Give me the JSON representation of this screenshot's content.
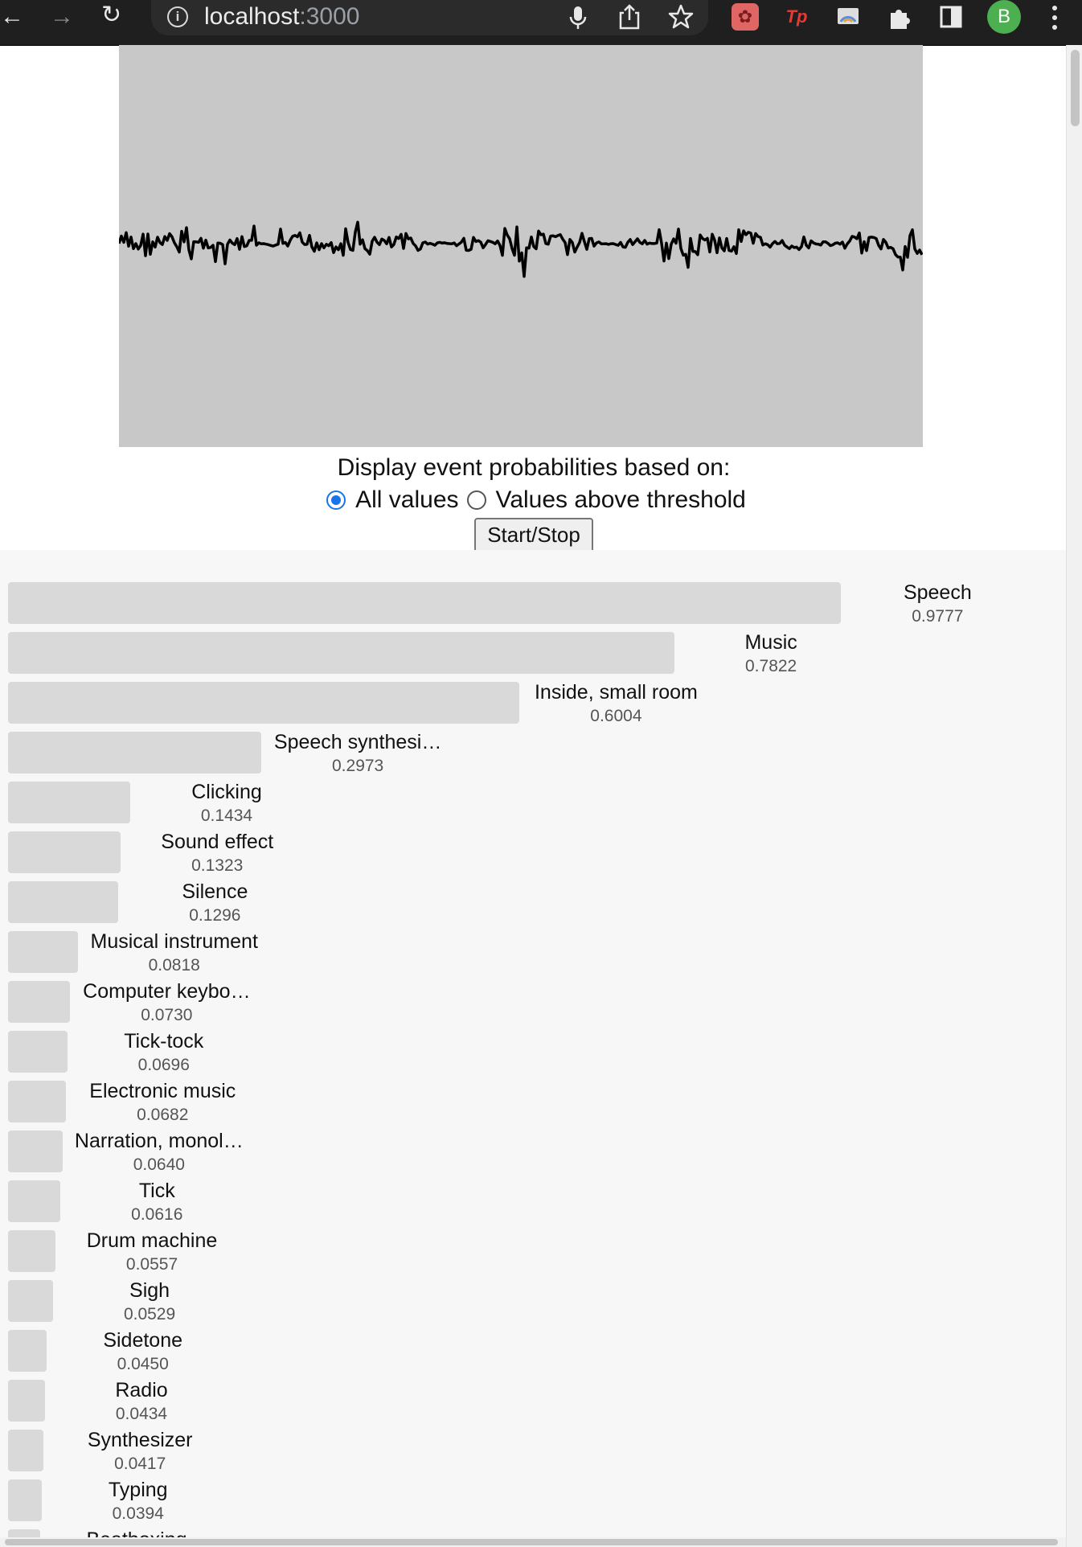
{
  "browser": {
    "url_host": "localhost",
    "url_port": ":3000",
    "avatar_initial": "B",
    "icons": {
      "back": "arrow-left-icon",
      "forward": "arrow-right-icon",
      "reload": "reload-icon",
      "info": "info-icon",
      "mic": "microphone-icon",
      "share": "share-icon",
      "star": "star-icon",
      "extensions": "puzzle-icon",
      "sidepanel": "side-panel-icon",
      "menu": "kebab-menu-icon"
    },
    "extensions": [
      {
        "name": "react-devtools-icon",
        "color": "#e06666"
      },
      {
        "name": "tp-extension-icon",
        "label": "Tp",
        "color": "#e53935"
      },
      {
        "name": "cast-extension-icon",
        "color": "#5c8ddb"
      }
    ]
  },
  "controls": {
    "label": "Display event probabilities based on:",
    "option_all": "All values",
    "option_threshold": "Values above threshold",
    "selected": "all",
    "start_stop": "Start/Stop",
    "accent": "#1a73e8"
  },
  "events": [
    {
      "name": "Speech",
      "value": "0.9777",
      "p": 0.9777
    },
    {
      "name": "Music",
      "value": "0.7822",
      "p": 0.7822
    },
    {
      "name": "Inside, small room",
      "value": "0.6004",
      "p": 0.6004
    },
    {
      "name": "Speech synthesi…",
      "value": "0.2973",
      "p": 0.2973
    },
    {
      "name": "Clicking",
      "value": "0.1434",
      "p": 0.1434
    },
    {
      "name": "Sound effect",
      "value": "0.1323",
      "p": 0.1323
    },
    {
      "name": "Silence",
      "value": "0.1296",
      "p": 0.1296
    },
    {
      "name": "Musical instrument",
      "value": "0.0818",
      "p": 0.0818
    },
    {
      "name": "Computer keybo…",
      "value": "0.0730",
      "p": 0.073
    },
    {
      "name": "Tick-tock",
      "value": "0.0696",
      "p": 0.0696
    },
    {
      "name": "Electronic music",
      "value": "0.0682",
      "p": 0.0682
    },
    {
      "name": "Narration, monol…",
      "value": "0.0640",
      "p": 0.064
    },
    {
      "name": "Tick",
      "value": "0.0616",
      "p": 0.0616
    },
    {
      "name": "Drum machine",
      "value": "0.0557",
      "p": 0.0557
    },
    {
      "name": "Sigh",
      "value": "0.0529",
      "p": 0.0529
    },
    {
      "name": "Sidetone",
      "value": "0.0450",
      "p": 0.045
    },
    {
      "name": "Radio",
      "value": "0.0434",
      "p": 0.0434
    },
    {
      "name": "Synthesizer",
      "value": "0.0417",
      "p": 0.0417
    },
    {
      "name": "Typing",
      "value": "0.0394",
      "p": 0.0394
    },
    {
      "name": "Beatboxing",
      "value": "",
      "p": 0.036
    }
  ]
}
